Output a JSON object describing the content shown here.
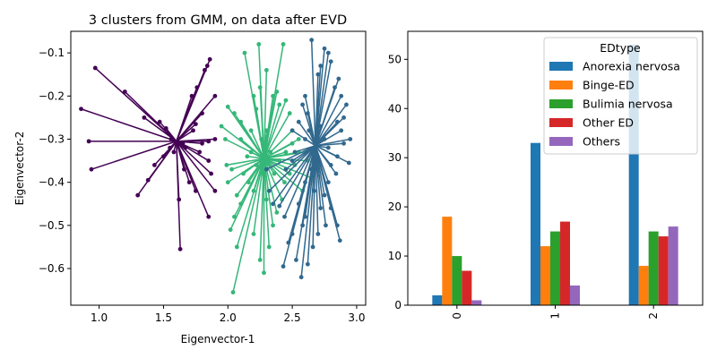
{
  "chart_data": [
    {
      "type": "scatter",
      "title": "3 clusters from GMM, on data after EVD",
      "xlabel": "Eigenvector-1",
      "ylabel": "Eigenvector-2",
      "xlim": [
        0.78,
        3.07
      ],
      "ylim": [
        -0.685,
        -0.05
      ],
      "xticks": [
        1.0,
        1.5,
        2.0,
        2.5,
        3.0
      ],
      "xtick_labels": [
        "1.0",
        "1.5",
        "2.0",
        "2.5",
        "3.0"
      ],
      "yticks": [
        -0.1,
        -0.2,
        -0.3,
        -0.4,
        -0.5,
        -0.6
      ],
      "ytick_labels": [
        "−0.1",
        "−0.2",
        "−0.3",
        "−0.4",
        "−0.5",
        "−0.6"
      ],
      "grid": false,
      "clusters": [
        {
          "center": [
            1.6,
            -0.305
          ],
          "color": "#440154",
          "points": [
            [
              0.97,
              -0.135
            ],
            [
              1.2,
              -0.19
            ],
            [
              1.35,
              -0.25
            ],
            [
              1.47,
              -0.26
            ],
            [
              1.52,
              -0.275
            ],
            [
              1.56,
              -0.3
            ],
            [
              1.5,
              -0.34
            ],
            [
              1.43,
              -0.36
            ],
            [
              1.38,
              -0.395
            ],
            [
              1.3,
              -0.43
            ],
            [
              0.86,
              -0.23
            ],
            [
              0.92,
              -0.305
            ],
            [
              0.94,
              -0.37
            ],
            [
              1.66,
              -0.37
            ],
            [
              1.7,
              -0.4
            ],
            [
              1.75,
              -0.42
            ],
            [
              1.62,
              -0.44
            ],
            [
              1.63,
              -0.555
            ],
            [
              1.85,
              -0.48
            ],
            [
              1.9,
              -0.42
            ],
            [
              1.87,
              -0.38
            ],
            [
              1.85,
              -0.35
            ],
            [
              1.78,
              -0.33
            ],
            [
              1.8,
              -0.31
            ],
            [
              1.85,
              -0.305
            ],
            [
              1.9,
              -0.3
            ],
            [
              1.73,
              -0.28
            ],
            [
              1.75,
              -0.265
            ],
            [
              1.72,
              -0.2
            ],
            [
              1.76,
              -0.18
            ],
            [
              1.82,
              -0.14
            ],
            [
              1.84,
              -0.13
            ],
            [
              1.86,
              -0.115
            ],
            [
              1.9,
              -0.2
            ],
            [
              1.8,
              -0.24
            ],
            [
              1.65,
              -0.31
            ],
            [
              1.67,
              -0.32
            ],
            [
              1.58,
              -0.33
            ],
            [
              1.55,
              -0.32
            ]
          ]
        },
        {
          "center": [
            2.28,
            -0.345
          ],
          "color": "#35b779",
          "points": [
            [
              2.24,
              -0.08
            ],
            [
              2.43,
              -0.08
            ],
            [
              2.13,
              -0.1
            ],
            [
              2.3,
              -0.14
            ],
            [
              2.25,
              -0.18
            ],
            [
              2.2,
              -0.2
            ],
            [
              2.0,
              -0.225
            ],
            [
              2.05,
              -0.24
            ],
            [
              2.1,
              -0.26
            ],
            [
              1.95,
              -0.27
            ],
            [
              1.98,
              -0.3
            ],
            [
              1.99,
              -0.36
            ],
            [
              2.03,
              -0.37
            ],
            [
              2.0,
              -0.4
            ],
            [
              2.07,
              -0.43
            ],
            [
              2.1,
              -0.45
            ],
            [
              2.05,
              -0.48
            ],
            [
              2.02,
              -0.51
            ],
            [
              2.07,
              -0.55
            ],
            [
              2.04,
              -0.655
            ],
            [
              2.2,
              -0.52
            ],
            [
              2.25,
              -0.58
            ],
            [
              2.28,
              -0.61
            ],
            [
              2.32,
              -0.55
            ],
            [
              2.35,
              -0.5
            ],
            [
              2.38,
              -0.47
            ],
            [
              2.42,
              -0.44
            ],
            [
              2.44,
              -0.4
            ],
            [
              2.48,
              -0.38
            ],
            [
              2.52,
              -0.36
            ],
            [
              2.55,
              -0.33
            ],
            [
              2.55,
              -0.3
            ],
            [
              2.5,
              -0.28
            ],
            [
              2.48,
              -0.24
            ],
            [
              2.45,
              -0.21
            ],
            [
              2.4,
              -0.22
            ],
            [
              2.38,
              -0.19
            ],
            [
              2.35,
              -0.2
            ],
            [
              2.22,
              -0.23
            ],
            [
              2.18,
              -0.28
            ],
            [
              2.1,
              -0.3
            ],
            [
              2.15,
              -0.34
            ],
            [
              2.12,
              -0.38
            ],
            [
              2.16,
              -0.4
            ],
            [
              2.2,
              -0.42
            ],
            [
              2.3,
              -0.44
            ],
            [
              2.36,
              -0.38
            ],
            [
              2.4,
              -0.35
            ],
            [
              2.45,
              -0.33
            ],
            [
              2.5,
              -0.31
            ],
            [
              2.6,
              -0.33
            ],
            [
              2.62,
              -0.35
            ],
            [
              2.65,
              -0.39
            ],
            [
              2.58,
              -0.42
            ],
            [
              2.26,
              -0.3
            ],
            [
              2.3,
              -0.28
            ],
            [
              2.33,
              -0.33
            ],
            [
              2.27,
              -0.38
            ],
            [
              2.22,
              -0.36
            ],
            [
              2.18,
              -0.33
            ]
          ]
        },
        {
          "center": [
            2.68,
            -0.315
          ],
          "color": "#31688e",
          "points": [
            [
              2.65,
              -0.07
            ],
            [
              2.75,
              -0.09
            ],
            [
              2.78,
              -0.1
            ],
            [
              2.8,
              -0.12
            ],
            [
              2.72,
              -0.13
            ],
            [
              2.7,
              -0.15
            ],
            [
              2.86,
              -0.16
            ],
            [
              2.83,
              -0.18
            ],
            [
              2.88,
              -0.2
            ],
            [
              2.6,
              -0.2
            ],
            [
              2.58,
              -0.22
            ],
            [
              2.62,
              -0.24
            ],
            [
              2.55,
              -0.26
            ],
            [
              2.5,
              -0.28
            ],
            [
              2.92,
              -0.22
            ],
            [
              2.9,
              -0.25
            ],
            [
              2.85,
              -0.26
            ],
            [
              2.88,
              -0.28
            ],
            [
              2.95,
              -0.3
            ],
            [
              2.9,
              -0.31
            ],
            [
              2.94,
              -0.355
            ],
            [
              2.85,
              -0.34
            ],
            [
              2.8,
              -0.36
            ],
            [
              2.84,
              -0.38
            ],
            [
              2.78,
              -0.4
            ],
            [
              2.75,
              -0.43
            ],
            [
              2.8,
              -0.46
            ],
            [
              2.85,
              -0.5
            ],
            [
              2.87,
              -0.535
            ],
            [
              2.76,
              -0.5
            ],
            [
              2.7,
              -0.52
            ],
            [
              2.66,
              -0.55
            ],
            [
              2.62,
              -0.59
            ],
            [
              2.57,
              -0.62
            ],
            [
              2.53,
              -0.58
            ],
            [
              2.43,
              -0.595
            ],
            [
              2.47,
              -0.54
            ],
            [
              2.5,
              -0.52
            ],
            [
              2.44,
              -0.48
            ],
            [
              2.4,
              -0.455
            ],
            [
              2.35,
              -0.45
            ],
            [
              2.32,
              -0.42
            ],
            [
              2.3,
              -0.37
            ],
            [
              2.45,
              -0.37
            ],
            [
              2.5,
              -0.35
            ],
            [
              2.52,
              -0.33
            ],
            [
              2.6,
              -0.3
            ],
            [
              2.63,
              -0.28
            ],
            [
              2.72,
              -0.27
            ],
            [
              2.75,
              -0.3
            ],
            [
              2.78,
              -0.32
            ],
            [
              2.7,
              -0.35
            ],
            [
              2.65,
              -0.37
            ],
            [
              2.6,
              -0.4
            ],
            [
              2.67,
              -0.42
            ],
            [
              2.72,
              -0.46
            ],
            [
              2.6,
              -0.48
            ],
            [
              2.55,
              -0.45
            ],
            [
              2.58,
              -0.5
            ]
          ]
        }
      ]
    },
    {
      "type": "bar",
      "categories": [
        "0",
        "1",
        "2"
      ],
      "ylim": [
        0,
        55.7
      ],
      "yticks": [
        0,
        10,
        20,
        30,
        40,
        50
      ],
      "ytick_labels": [
        "0",
        "10",
        "20",
        "30",
        "40",
        "50"
      ],
      "grid": false,
      "legend": {
        "title": "EDtype",
        "placement": "top-right"
      },
      "series": [
        {
          "name": "Anorexia nervosa",
          "color": "#1f77b4",
          "values": [
            2,
            33,
            53
          ]
        },
        {
          "name": "Binge-ED",
          "color": "#ff7f0e",
          "values": [
            18,
            12,
            8
          ]
        },
        {
          "name": "Bulimia nervosa",
          "color": "#2ca02c",
          "values": [
            10,
            15,
            15
          ]
        },
        {
          "name": "Other ED",
          "color": "#d62728",
          "values": [
            7,
            17,
            14
          ]
        },
        {
          "name": "Others",
          "color": "#9467bd",
          "values": [
            1,
            4,
            16
          ]
        }
      ]
    }
  ]
}
